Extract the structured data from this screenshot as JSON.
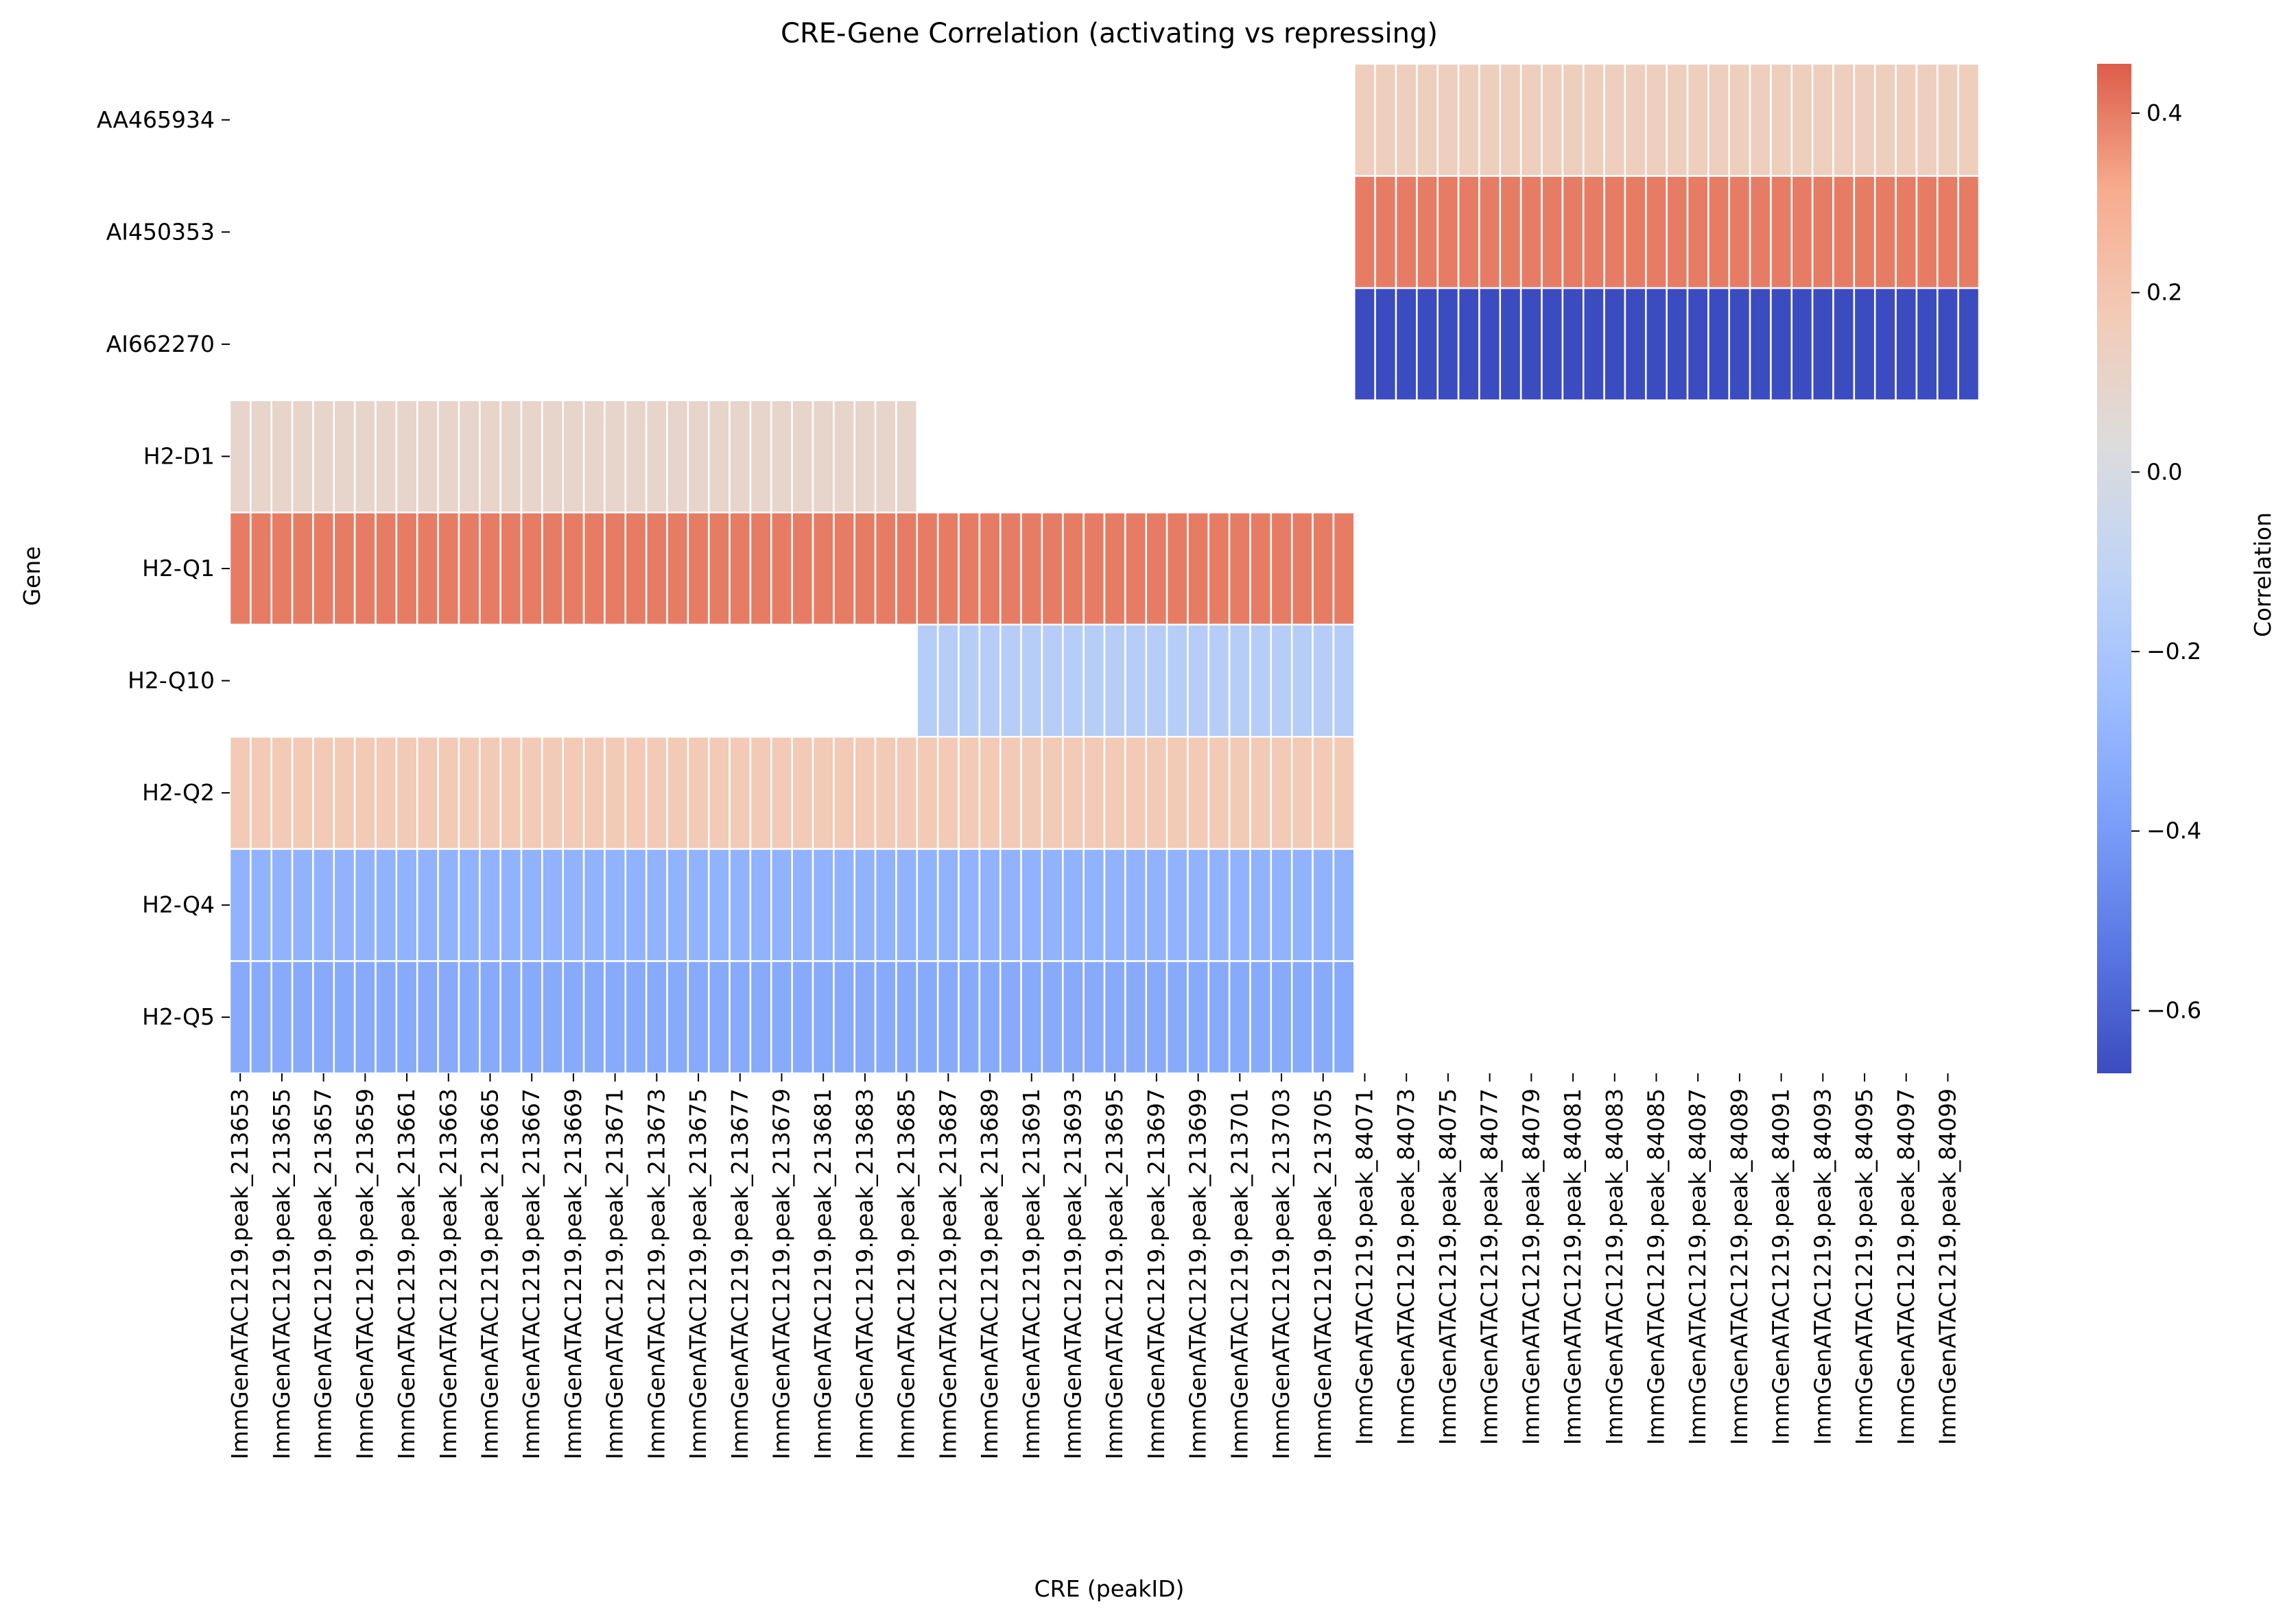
{
  "chart_data": {
    "type": "heatmap",
    "title": "CRE-Gene Correlation (activating vs repressing)",
    "xlabel": "CRE (peakID)",
    "ylabel": "Gene",
    "colorbar_label": "Correlation",
    "colormap": "coolwarm",
    "vmin": -0.67,
    "vmax": 0.455,
    "colorbar_ticks": [
      0.4,
      0.2,
      0.0,
      -0.2,
      -0.4,
      -0.6
    ],
    "colorbar_tick_labels": [
      "0.4",
      "0.2",
      "0.0",
      "−0.2",
      "−0.4",
      "−0.6"
    ],
    "genes": [
      "AA465934",
      "AI450353",
      "AI662270",
      "H2-D1",
      "H2-Q1",
      "H2-Q10",
      "H2-Q2",
      "H2-Q4",
      "H2-Q5"
    ],
    "peak_prefix": "ImmGenATAC1219.peak_",
    "peak_ids": [
      213653,
      213654,
      213655,
      213656,
      213657,
      213658,
      213659,
      213660,
      213661,
      213662,
      213663,
      213664,
      213665,
      213666,
      213667,
      213668,
      213669,
      213670,
      213671,
      213672,
      213673,
      213674,
      213675,
      213676,
      213677,
      213678,
      213679,
      213680,
      213681,
      213682,
      213683,
      213684,
      213685,
      213686,
      213687,
      213688,
      213689,
      213690,
      213691,
      213692,
      213693,
      213694,
      213695,
      213696,
      213697,
      213698,
      213699,
      213700,
      213701,
      213702,
      213703,
      213704,
      213705,
      213706,
      84071,
      84072,
      84073,
      84074,
      84075,
      84076,
      84077,
      84078,
      84079,
      84080,
      84081,
      84082,
      84083,
      84084,
      84085,
      84086,
      84087,
      84088,
      84089,
      84090,
      84091,
      84092,
      84093,
      84094,
      84095,
      84096,
      84097,
      84098,
      84099,
      84100
    ],
    "labeled_tick_step": 2,
    "blocks": [
      {
        "gene": "AA465934",
        "from_peak": 84071,
        "to_peak": 84100,
        "value": 0.15
      },
      {
        "gene": "AI450353",
        "from_peak": 84071,
        "to_peak": 84100,
        "value": 0.4
      },
      {
        "gene": "AI662270",
        "from_peak": 84071,
        "to_peak": 84100,
        "value": -0.67
      },
      {
        "gene": "H2-D1",
        "from_peak": 213653,
        "to_peak": 213685,
        "value": 0.1
      },
      {
        "gene": "H2-Q1",
        "from_peak": 213653,
        "to_peak": 213706,
        "value": 0.4
      },
      {
        "gene": "H2-Q10",
        "from_peak": 213686,
        "to_peak": 213706,
        "value": -0.15
      },
      {
        "gene": "H2-Q2",
        "from_peak": 213653,
        "to_peak": 213706,
        "value": 0.18
      },
      {
        "gene": "H2-Q4",
        "from_peak": 213653,
        "to_peak": 213706,
        "value": -0.3
      },
      {
        "gene": "H2-Q5",
        "from_peak": 213653,
        "to_peak": 213706,
        "value": -0.34
      }
    ]
  }
}
